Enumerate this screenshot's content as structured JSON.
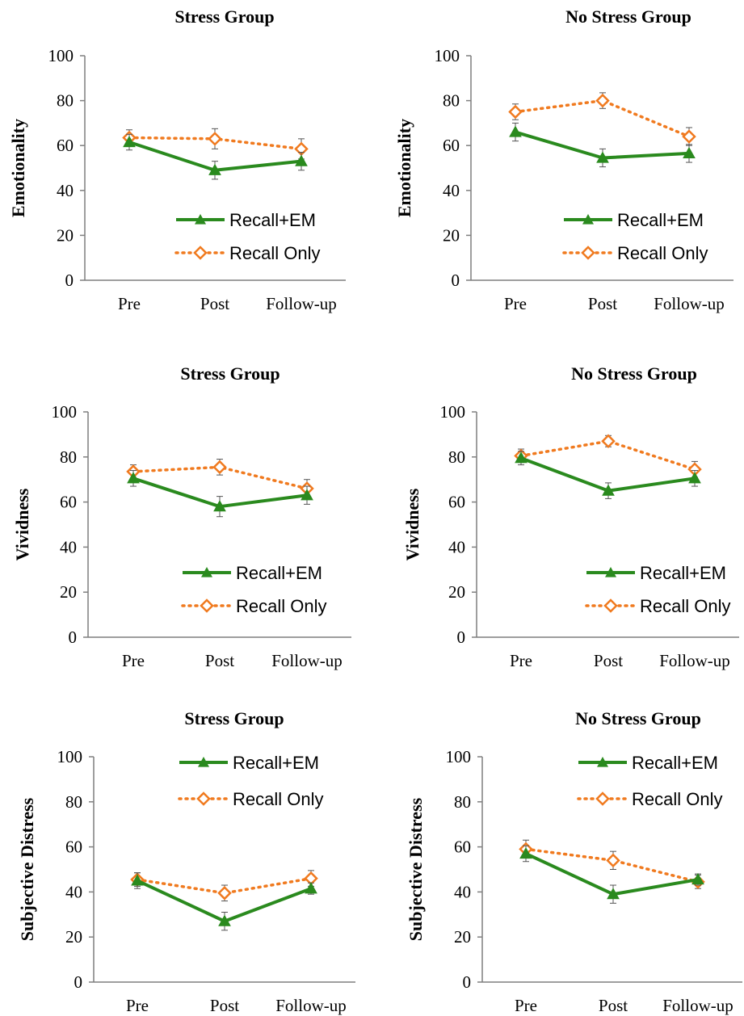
{
  "colors": {
    "recall_em": "#2a8a1e",
    "recall_only": "#f07a1f",
    "axis": "#7f7f7f",
    "error_bar": "#555555"
  },
  "chart_data": [
    {
      "type": "line",
      "title": "Stress Group",
      "ylabel": "Emotionality",
      "categories": [
        "Pre",
        "Post",
        "Follow-up"
      ],
      "ylim": [
        0,
        100
      ],
      "yticks": [
        "0",
        "20",
        "40",
        "60",
        "80",
        "100"
      ],
      "legend_position": "bottom-right",
      "series": [
        {
          "name": "Recall+EM",
          "values": [
            61.5,
            49,
            53
          ],
          "errors": [
            3.5,
            4,
            4
          ]
        },
        {
          "name": "Recall Only",
          "values": [
            63.5,
            63,
            58.5
          ],
          "errors": [
            3.5,
            4.5,
            4.5
          ]
        }
      ]
    },
    {
      "type": "line",
      "title": "No Stress Group",
      "ylabel": "Emotionality",
      "categories": [
        "Pre",
        "Post",
        "Follow-up"
      ],
      "ylim": [
        0,
        100
      ],
      "yticks": [
        "0",
        "20",
        "40",
        "60",
        "80",
        "100"
      ],
      "legend_position": "bottom-right",
      "series": [
        {
          "name": "Recall+EM",
          "values": [
            66,
            54.5,
            56.5
          ],
          "errors": [
            4,
            4,
            4
          ]
        },
        {
          "name": "Recall Only",
          "values": [
            75,
            80,
            64
          ],
          "errors": [
            3.5,
            3.5,
            4
          ]
        }
      ]
    },
    {
      "type": "line",
      "title": "Stress Group",
      "ylabel": "Vividness",
      "categories": [
        "Pre",
        "Post",
        "Follow-up"
      ],
      "ylim": [
        0,
        100
      ],
      "yticks": [
        "0",
        "20",
        "40",
        "60",
        "80",
        "100"
      ],
      "legend_position": "bottom-right",
      "series": [
        {
          "name": "Recall+EM",
          "values": [
            70.5,
            58,
            63
          ],
          "errors": [
            3.5,
            4.5,
            4
          ]
        },
        {
          "name": "Recall Only",
          "values": [
            73.5,
            75.5,
            66
          ],
          "errors": [
            3,
            3.5,
            4
          ]
        }
      ]
    },
    {
      "type": "line",
      "title": "No Stress Group",
      "ylabel": "Vividness",
      "categories": [
        "Pre",
        "Post",
        "Follow-up"
      ],
      "ylim": [
        0,
        100
      ],
      "yticks": [
        "0",
        "20",
        "40",
        "60",
        "80",
        "100"
      ],
      "legend_position": "bottom-right",
      "series": [
        {
          "name": "Recall+EM",
          "values": [
            79.5,
            65,
            70.5
          ],
          "errors": [
            3,
            3.5,
            3.5
          ]
        },
        {
          "name": "Recall Only",
          "values": [
            80.5,
            87,
            74.5
          ],
          "errors": [
            3,
            2.5,
            3.5
          ]
        }
      ]
    },
    {
      "type": "line",
      "title": "Stress Group",
      "ylabel": "Subjective Distress",
      "categories": [
        "Pre",
        "Post",
        "Follow-up"
      ],
      "ylim": [
        0,
        100
      ],
      "yticks": [
        "0",
        "20",
        "40",
        "60",
        "80",
        "100"
      ],
      "legend_position": "top-right",
      "series": [
        {
          "name": "Recall+EM",
          "values": [
            45,
            27,
            41.5
          ],
          "errors": [
            3.5,
            4,
            2.5
          ]
        },
        {
          "name": "Recall Only",
          "values": [
            45.5,
            39.5,
            46
          ],
          "errors": [
            3,
            3.5,
            3.5
          ]
        }
      ]
    },
    {
      "type": "line",
      "title": "No Stress Group",
      "ylabel": "Subjective Distress",
      "categories": [
        "Pre",
        "Post",
        "Follow-up"
      ],
      "ylim": [
        0,
        100
      ],
      "yticks": [
        "0",
        "20",
        "40",
        "60",
        "80",
        "100"
      ],
      "legend_position": "top-right",
      "series": [
        {
          "name": "Recall+EM",
          "values": [
            57,
            39,
            45.5
          ],
          "errors": [
            3.5,
            4,
            2.5
          ]
        },
        {
          "name": "Recall Only",
          "values": [
            59,
            54,
            44.5
          ],
          "errors": [
            4,
            4,
            3
          ]
        }
      ]
    }
  ]
}
